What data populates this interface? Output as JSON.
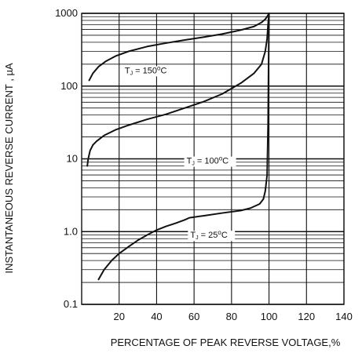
{
  "chart_data": {
    "type": "line",
    "title": "",
    "xlabel": "PERCENTAGE OF PEAK REVERSE VOLTAGE,%",
    "ylabel": "INSTANTANEOUS REVERSE CURRENT , µA",
    "xlim": [
      0,
      140
    ],
    "ylim": [
      0.1,
      1000
    ],
    "yscale": "log",
    "x_ticks": [
      20,
      40,
      60,
      80,
      100,
      120,
      140
    ],
    "y_ticks": [
      0.1,
      1.0,
      10,
      100,
      1000
    ],
    "x_tick_labels": [
      "20",
      "40",
      "60",
      "80",
      "100",
      "120",
      "140"
    ],
    "y_tick_labels": [
      "0.1",
      "1.0",
      "10",
      "100",
      "1000"
    ],
    "grid": true,
    "series": [
      {
        "name": "TJ = 150°C",
        "label": {
          "main": "T",
          "sub": "J",
          "rest": " = 150",
          "sup": "o",
          "unit": "C"
        },
        "label_at": {
          "x": 23,
          "y": 150
        },
        "x": [
          4,
          6,
          9,
          13,
          18,
          25,
          35,
          45,
          55,
          65,
          75,
          85,
          92,
          96,
          98,
          99,
          100
        ],
        "y": [
          120,
          150,
          185,
          220,
          258,
          300,
          350,
          390,
          430,
          470,
          520,
          590,
          660,
          750,
          830,
          900,
          1000
        ]
      },
      {
        "name": "TJ = 100°C",
        "label": {
          "main": "T",
          "sub": "J",
          "rest": " = 100",
          "sup": "o",
          "unit": "C"
        },
        "label_at": {
          "x": 56,
          "y": 8.6
        },
        "x": [
          3,
          3.5,
          4.5,
          6,
          8,
          12,
          18,
          25,
          35,
          45,
          55,
          65,
          75,
          85,
          92,
          96,
          98,
          99,
          99.5,
          100
        ],
        "y": [
          8,
          10,
          13,
          15.5,
          17.5,
          21,
          25,
          29,
          35,
          41,
          50,
          61,
          78,
          110,
          150,
          200,
          300,
          450,
          700,
          1000
        ]
      },
      {
        "name": "TJ = 25°C",
        "label": {
          "main": "T",
          "sub": "J",
          "rest": " = 25",
          "sup": "o",
          "unit": "C"
        },
        "label_at": {
          "x": 58,
          "y": 0.82
        },
        "x": [
          9,
          12,
          16,
          20,
          25,
          30,
          35,
          40,
          45,
          50,
          55,
          57.5,
          65,
          75,
          85,
          90,
          95,
          97,
          98,
          99,
          99.5,
          100
        ],
        "y": [
          0.22,
          0.3,
          0.4,
          0.5,
          0.62,
          0.76,
          0.9,
          1.05,
          1.18,
          1.3,
          1.45,
          1.55,
          1.65,
          1.8,
          1.95,
          2.1,
          2.4,
          2.8,
          3.6,
          6,
          30,
          1000
        ]
      }
    ]
  }
}
